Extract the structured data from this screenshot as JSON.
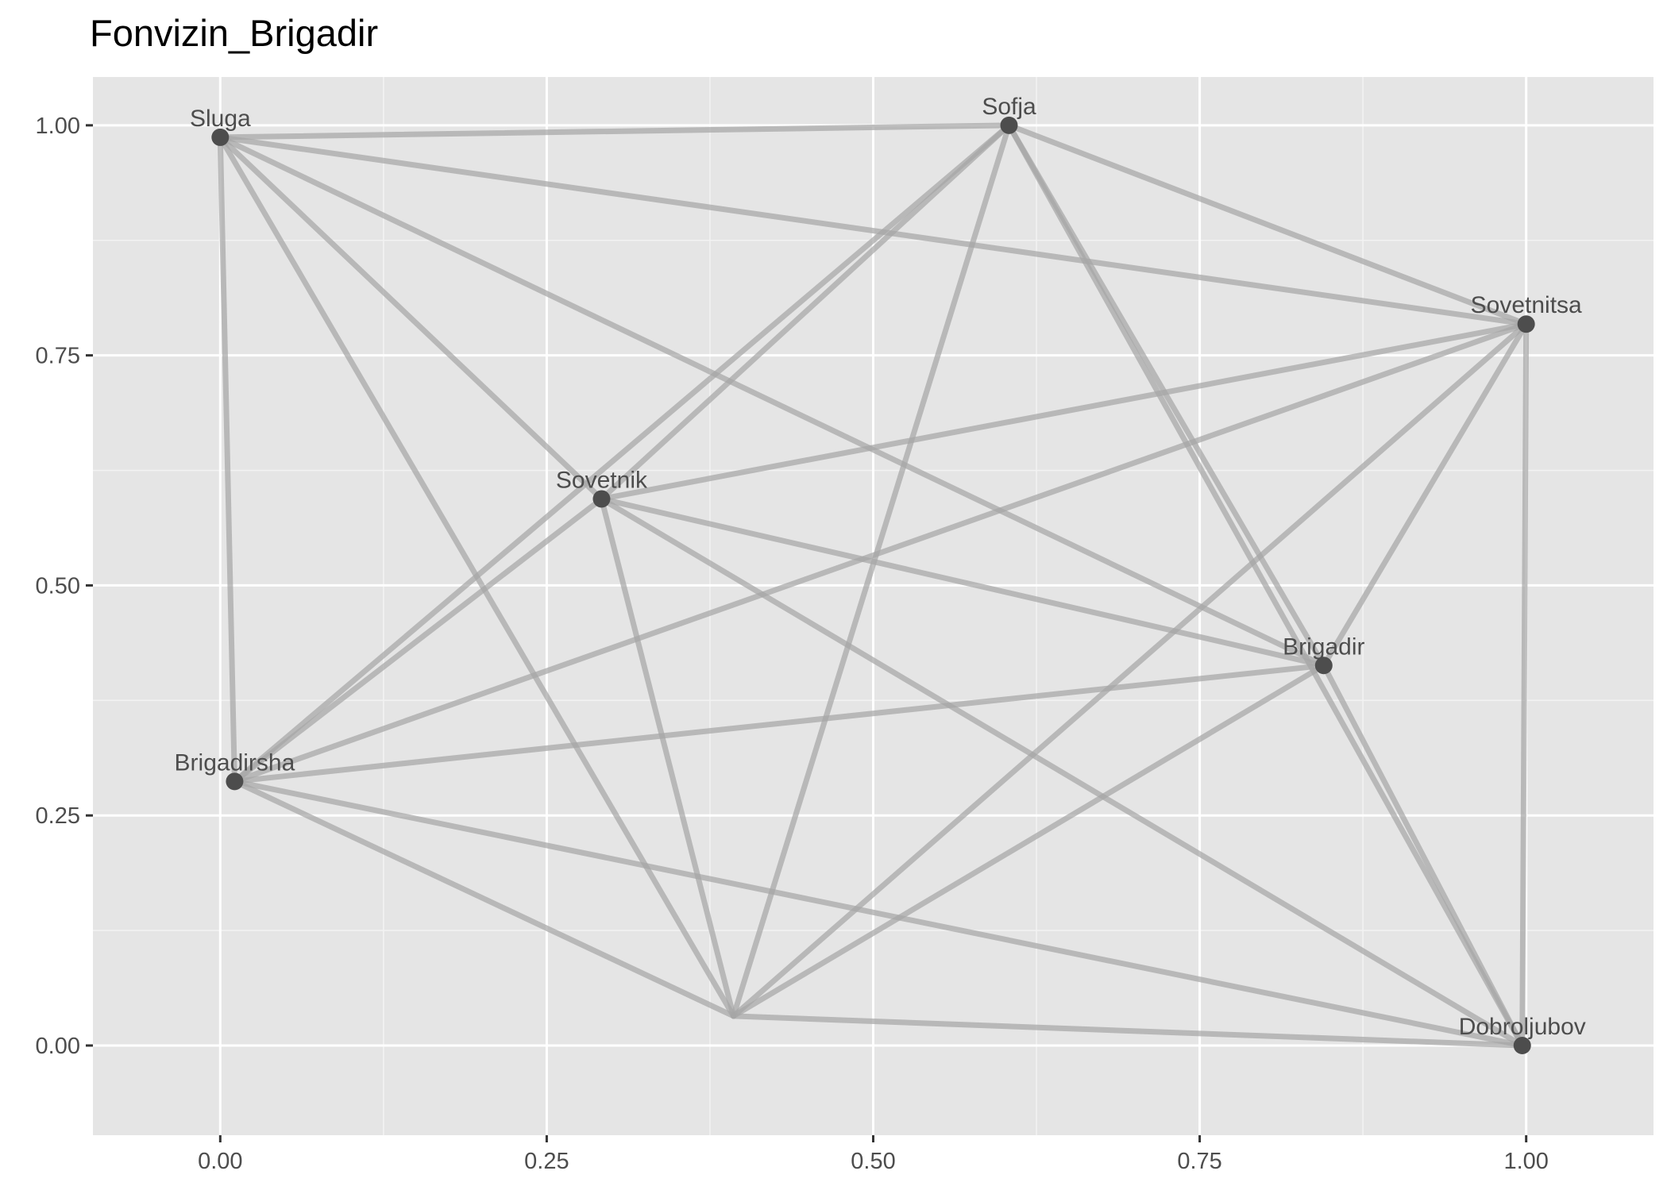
{
  "chart_data": {
    "type": "network",
    "title": "Fonvizin_Brigadir",
    "xlabel": "",
    "ylabel": "",
    "xlim": [
      -0.0975,
      1.0975
    ],
    "ylim": [
      -0.0975,
      1.0525
    ],
    "x_ticks": [
      0.0,
      0.25,
      0.5,
      0.75,
      1.0
    ],
    "x_tick_labels": [
      "0.00",
      "0.25",
      "0.50",
      "0.75",
      "1.00"
    ],
    "y_ticks": [
      0.0,
      0.25,
      0.5,
      0.75,
      1.0
    ],
    "y_tick_labels": [
      "0.00",
      "0.25",
      "0.50",
      "0.75",
      "1.00"
    ],
    "grid": true,
    "legend": "none",
    "nodes": [
      {
        "id": "Sluga",
        "label": "Sluga",
        "x": 0.0,
        "y": 0.987
      },
      {
        "id": "Sofja",
        "label": "Sofja",
        "x": 0.604,
        "y": 1.0
      },
      {
        "id": "Sovetnitsa",
        "label": "Sovetnitsa",
        "x": 1.0,
        "y": 0.784
      },
      {
        "id": "Sovetnik",
        "label": "Sovetnik",
        "x": 0.292,
        "y": 0.594
      },
      {
        "id": "Brigadir",
        "label": "Brigadir",
        "x": 0.845,
        "y": 0.413
      },
      {
        "id": "Brigadirsha",
        "label": "Brigadirsha",
        "x": 0.011,
        "y": 0.287
      },
      {
        "id": "Dobroljubov",
        "label": "Dobroljubov",
        "x": 0.997,
        "y": 0.0
      },
      {
        "id": "Unnamed",
        "label": "",
        "x": 0.393,
        "y": 0.032
      }
    ],
    "edges": [
      [
        "Sluga",
        "Sofja"
      ],
      [
        "Sluga",
        "Sovetnitsa"
      ],
      [
        "Sluga",
        "Sovetnik"
      ],
      [
        "Sluga",
        "Brigadir"
      ],
      [
        "Sluga",
        "Brigadirsha"
      ],
      [
        "Sluga",
        "Unnamed"
      ],
      [
        "Sofja",
        "Sovetnitsa"
      ],
      [
        "Sofja",
        "Sovetnik"
      ],
      [
        "Sofja",
        "Brigadir"
      ],
      [
        "Sofja",
        "Brigadirsha"
      ],
      [
        "Sofja",
        "Dobroljubov"
      ],
      [
        "Sofja",
        "Unnamed"
      ],
      [
        "Sovetnitsa",
        "Sovetnik"
      ],
      [
        "Sovetnitsa",
        "Brigadir"
      ],
      [
        "Sovetnitsa",
        "Brigadirsha"
      ],
      [
        "Sovetnitsa",
        "Dobroljubov"
      ],
      [
        "Sovetnitsa",
        "Unnamed"
      ],
      [
        "Sovetnik",
        "Brigadir"
      ],
      [
        "Sovetnik",
        "Brigadirsha"
      ],
      [
        "Sovetnik",
        "Dobroljubov"
      ],
      [
        "Sovetnik",
        "Unnamed"
      ],
      [
        "Brigadir",
        "Brigadirsha"
      ],
      [
        "Brigadir",
        "Dobroljubov"
      ],
      [
        "Brigadir",
        "Unnamed"
      ],
      [
        "Brigadirsha",
        "Dobroljubov"
      ],
      [
        "Brigadirsha",
        "Unnamed"
      ],
      [
        "Dobroljubov",
        "Unnamed"
      ]
    ],
    "colors": {
      "panel_background": "#E5E5E5",
      "grid_major": "#FFFFFF",
      "grid_minor": "#F2F2F2",
      "edge": "#A6A6A6",
      "node": "#4D4D4D",
      "node_label": "#4D4D4D",
      "tick_label": "#4D4D4D",
      "tick_mark": "#333333",
      "title": "#000000"
    }
  }
}
